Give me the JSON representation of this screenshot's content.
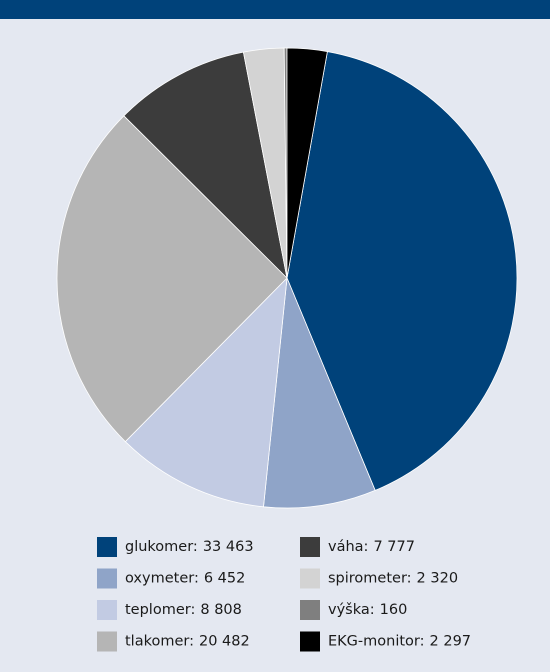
{
  "chart_data": {
    "type": "pie",
    "categories": [
      "glukomer:",
      "oxymeter:",
      "teplomer:",
      "tlakomer:",
      "váha:",
      "spirometer:",
      "výška:",
      "EKG-monitor:"
    ],
    "values": [
      33463,
      6452,
      8808,
      20482,
      7777,
      2320,
      160,
      2297
    ],
    "value_labels": [
      "33 463",
      "6 452",
      "8 808",
      "20 482",
      "7 777",
      "2 320",
      "160",
      "2 297"
    ],
    "colors": [
      "#00427a",
      "#8fa4c8",
      "#c2cbe3",
      "#b5b5b5",
      "#3c3c3c",
      "#d3d3d3",
      "#7f7f7f",
      "#000000"
    ]
  }
}
